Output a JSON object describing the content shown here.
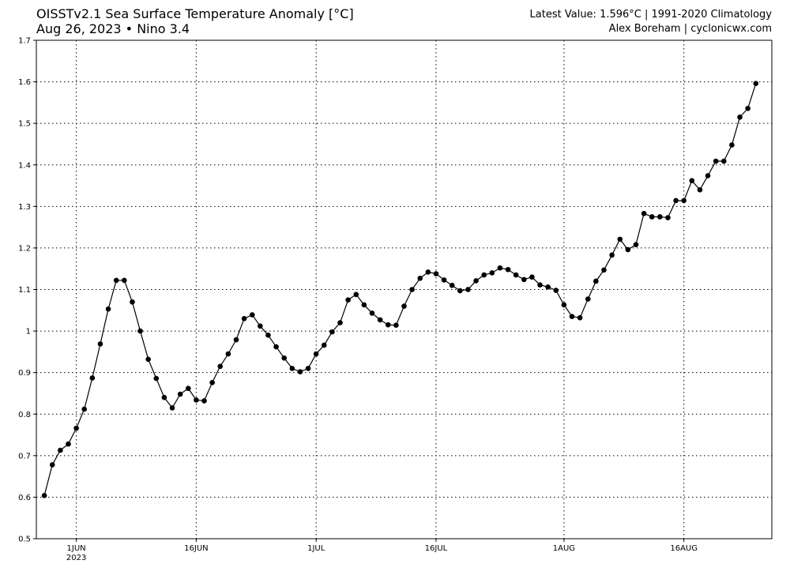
{
  "header": {
    "title_left_line1": "OISSTv2.1 Sea Surface Temperature Anomaly [°C]",
    "date": "Aug 26, 2023",
    "separator": "•",
    "region": "Nino 3.4",
    "latest_value_text": "Latest Value: 1.596°C | 1991-2020 Climatology",
    "credit_text": "Alex Boreham | cyclonicwx.com"
  },
  "chart_data": {
    "type": "line",
    "title": "OISSTv2.1 Sea Surface Temperature Anomaly [°C]",
    "subtitle": "Aug 26, 2023 • Nino 3.4",
    "xlabel": "",
    "ylabel": "",
    "x_start_date": "2023-05-28",
    "x_end_date": "2023-08-26",
    "xlim": [
      "2023-05-27",
      "2023-08-27"
    ],
    "ylim": [
      0.5,
      1.7
    ],
    "grid": true,
    "grid_style": "dotted",
    "y_ticks": [
      0.5,
      0.6,
      0.7,
      0.8,
      0.9,
      1.0,
      1.1,
      1.2,
      1.3,
      1.4,
      1.5,
      1.6,
      1.7
    ],
    "y_tick_labels": [
      "0.5",
      "0.6",
      "0.7",
      "0.8",
      "0.9",
      "1",
      "1.1",
      "1.2",
      "1.3",
      "1.4",
      "1.5",
      "1.6",
      "1.7"
    ],
    "x_ticks": [
      {
        "date": "2023-06-01",
        "label": "1JUN",
        "sublabel": "2023"
      },
      {
        "date": "2023-06-16",
        "label": "16JUN",
        "sublabel": ""
      },
      {
        "date": "2023-07-01",
        "label": "1JUL",
        "sublabel": ""
      },
      {
        "date": "2023-07-16",
        "label": "16JUL",
        "sublabel": ""
      },
      {
        "date": "2023-08-01",
        "label": "1AUG",
        "sublabel": ""
      },
      {
        "date": "2023-08-16",
        "label": "16AUG",
        "sublabel": ""
      }
    ],
    "line_color": "#000000",
    "marker": "circle",
    "series": [
      {
        "values": [
          0.604,
          0.678,
          0.713,
          0.728,
          0.766,
          0.812,
          0.887,
          0.969,
          1.053,
          1.122,
          1.122,
          1.07,
          1.0,
          0.932,
          0.886,
          0.84,
          0.815,
          0.848,
          0.862,
          0.834,
          0.832,
          0.876,
          0.915,
          0.945,
          0.979,
          1.03,
          1.039,
          1.012,
          0.99,
          0.962,
          0.935,
          0.91,
          0.902,
          0.91,
          0.945,
          0.966,
          0.998,
          1.02,
          1.075,
          1.088,
          1.063,
          1.043,
          1.027,
          1.015,
          1.014,
          1.06,
          1.1,
          1.127,
          1.142,
          1.138,
          1.123,
          1.11,
          1.097,
          1.1,
          1.121,
          1.135,
          1.14,
          1.152,
          1.148,
          1.135,
          1.124,
          1.13,
          1.111,
          1.106,
          1.098,
          1.063,
          1.035,
          1.032,
          1.077,
          1.12,
          1.147,
          1.183,
          1.221,
          1.196,
          1.208,
          1.283,
          1.275,
          1.275,
          1.273,
          1.314,
          1.314,
          1.362,
          1.34,
          1.374,
          1.409,
          1.409,
          1.448,
          1.515,
          1.536,
          1.596
        ]
      }
    ]
  }
}
